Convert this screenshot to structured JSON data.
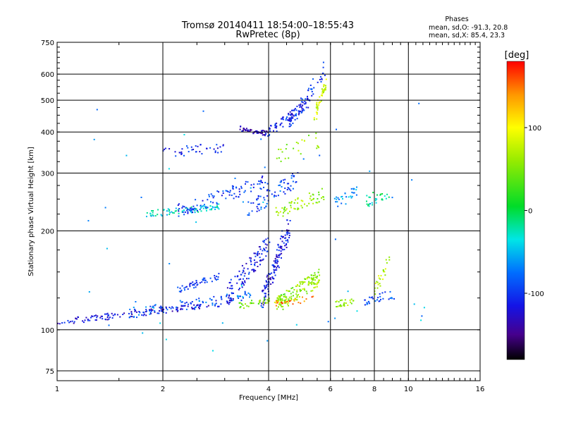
{
  "header": {
    "title_line1": "Tromsø 20140411 18:54:00–18:55:43",
    "title_line2": "RwPretec (8p)",
    "phases_title": "Phases",
    "phases_o": "mean, sd,O: -91.3, 20.8",
    "phases_x": "mean, sd,X: 85.4, 23.3"
  },
  "colorbar": {
    "title": "[deg]",
    "min": -180,
    "max": 180,
    "ticks": [
      "100",
      "0",
      "-100"
    ],
    "tick_values": [
      100,
      0,
      -100
    ]
  },
  "chart_data": {
    "type": "scatter",
    "title": "Tromsø 20140411 18:54:00–18:55:43",
    "subtitle": "RwPretec (8p)",
    "xlabel": "Frequency [MHz]",
    "ylabel": "Stationary phase Virtual Height [km]",
    "xscale": "log2",
    "yscale": "log",
    "xlim": [
      1,
      16
    ],
    "ylim": [
      70,
      750
    ],
    "x_ticks": [
      1,
      2,
      4,
      6,
      8,
      10,
      16
    ],
    "x_tick_labels": [
      "1",
      "2",
      "4",
      "6",
      "8",
      "10",
      "16"
    ],
    "y_ticks": [
      75,
      100,
      200,
      300,
      400,
      500,
      600,
      750
    ],
    "y_tick_labels": [
      "75",
      "100",
      "200",
      "300",
      "400",
      "500",
      "600",
      "750"
    ],
    "grid": true,
    "color_by": "phase [deg]",
    "traces": [
      {
        "x_from": 1.0,
        "x_to": 3.2,
        "y_from": 105,
        "y_to": 122,
        "phase": -120,
        "n": 150,
        "spread": 0.02
      },
      {
        "x_from": 1.6,
        "x_to": 3.6,
        "y_from": 112,
        "y_to": 128,
        "phase": -80,
        "n": 80,
        "spread": 0.03
      },
      {
        "x_from": 2.2,
        "x_to": 2.9,
        "y_from": 132,
        "y_to": 146,
        "phase": -100,
        "n": 50,
        "spread": 0.02
      },
      {
        "x_from": 3.0,
        "x_to": 4.0,
        "y_from": 125,
        "y_to": 180,
        "phase": -110,
        "n": 110,
        "spread": 0.06
      },
      {
        "x_from": 3.8,
        "x_to": 4.6,
        "y_from": 120,
        "y_to": 210,
        "phase": -115,
        "n": 140,
        "spread": 0.06
      },
      {
        "x_from": 4.2,
        "x_to": 5.6,
        "y_from": 118,
        "y_to": 145,
        "phase": 60,
        "n": 140,
        "spread": 0.05
      },
      {
        "x_from": 3.3,
        "x_to": 4.5,
        "y_from": 118,
        "y_to": 126,
        "phase": 50,
        "n": 50,
        "spread": 0.02
      },
      {
        "x_from": 4.0,
        "x_to": 5.4,
        "y_from": 120,
        "y_to": 124,
        "phase": 150,
        "n": 25,
        "spread": 0.02
      },
      {
        "x_from": 6.2,
        "x_to": 7.0,
        "y_from": 120,
        "y_to": 122,
        "phase": 60,
        "n": 25,
        "spread": 0.02
      },
      {
        "x_from": 7.4,
        "x_to": 9.2,
        "y_from": 122,
        "y_to": 128,
        "phase": -90,
        "n": 30,
        "spread": 0.03
      },
      {
        "x_from": 8.0,
        "x_to": 8.8,
        "y_from": 130,
        "y_to": 165,
        "phase": 70,
        "n": 25,
        "spread": 0.05
      },
      {
        "x_from": 1.8,
        "x_to": 2.9,
        "y_from": 225,
        "y_to": 236,
        "phase": -35,
        "n": 80,
        "spread": 0.02
      },
      {
        "x_from": 2.2,
        "x_to": 4.0,
        "y_from": 230,
        "y_to": 285,
        "phase": -100,
        "n": 100,
        "spread": 0.04
      },
      {
        "x_from": 3.5,
        "x_to": 4.8,
        "y_from": 230,
        "y_to": 290,
        "phase": -90,
        "n": 70,
        "spread": 0.05
      },
      {
        "x_from": 4.2,
        "x_to": 5.8,
        "y_from": 228,
        "y_to": 260,
        "phase": 60,
        "n": 60,
        "spread": 0.04
      },
      {
        "x_from": 6.2,
        "x_to": 7.2,
        "y_from": 240,
        "y_to": 265,
        "phase": -60,
        "n": 30,
        "spread": 0.04
      },
      {
        "x_from": 7.5,
        "x_to": 8.8,
        "y_from": 245,
        "y_to": 265,
        "phase": -20,
        "n": 25,
        "spread": 0.04
      },
      {
        "x_from": 2.0,
        "x_to": 3.0,
        "y_from": 345,
        "y_to": 360,
        "phase": -110,
        "n": 40,
        "spread": 0.03
      },
      {
        "x_from": 3.3,
        "x_to": 4.0,
        "y_from": 410,
        "y_to": 395,
        "phase": -130,
        "n": 50,
        "spread": 0.015
      },
      {
        "x_from": 4.0,
        "x_to": 5.2,
        "y_from": 400,
        "y_to": 490,
        "phase": -110,
        "n": 80,
        "spread": 0.03
      },
      {
        "x_from": 4.6,
        "x_to": 5.8,
        "y_from": 430,
        "y_to": 620,
        "phase": -100,
        "n": 60,
        "spread": 0.05
      },
      {
        "x_from": 5.4,
        "x_to": 5.8,
        "y_from": 440,
        "y_to": 560,
        "phase": 80,
        "n": 50,
        "spread": 0.04
      },
      {
        "x_from": 4.2,
        "x_to": 5.6,
        "y_from": 340,
        "y_to": 380,
        "phase": 60,
        "n": 25,
        "spread": 0.05
      },
      {
        "x_from": 1.2,
        "x_to": 12.0,
        "y_from": 85,
        "y_to": 500,
        "phase": -60,
        "n": 50,
        "spread": 0.6
      }
    ]
  }
}
